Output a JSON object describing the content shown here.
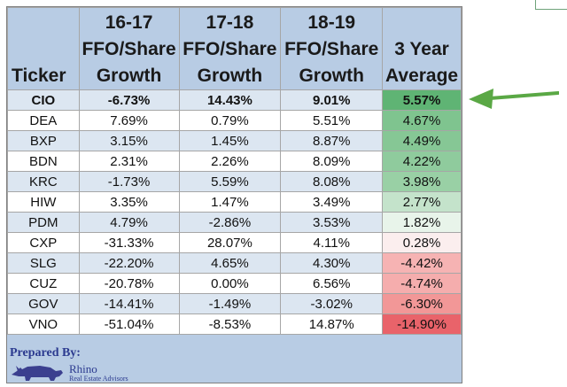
{
  "table": {
    "headers": [
      {
        "lines": [
          "",
          "",
          "Ticker"
        ]
      },
      {
        "lines": [
          "16-17",
          "FFO/Share",
          "Growth"
        ]
      },
      {
        "lines": [
          "17-18",
          "FFO/Share",
          "Growth"
        ]
      },
      {
        "lines": [
          "18-19",
          "FFO/Share",
          "Growth"
        ]
      },
      {
        "lines": [
          "",
          "3 Year",
          "Average"
        ]
      }
    ],
    "rows": [
      {
        "ticker": "CIO",
        "g1617": "-6.73%",
        "g1718": "14.43%",
        "g1819": "9.01%",
        "avg": "5.57%",
        "avg_color": "#5fb474",
        "bold": true
      },
      {
        "ticker": "DEA",
        "g1617": "7.69%",
        "g1718": "0.79%",
        "g1819": "5.51%",
        "avg": "4.67%",
        "avg_color": "#7fc48f"
      },
      {
        "ticker": "BXP",
        "g1617": "3.15%",
        "g1718": "1.45%",
        "g1819": "8.87%",
        "avg": "4.49%",
        "avg_color": "#86c795"
      },
      {
        "ticker": "BDN",
        "g1617": "2.31%",
        "g1718": "2.26%",
        "g1819": "8.09%",
        "avg": "4.22%",
        "avg_color": "#8fcb9d"
      },
      {
        "ticker": "KRC",
        "g1617": "-1.73%",
        "g1718": "5.59%",
        "g1819": "8.08%",
        "avg": "3.98%",
        "avg_color": "#99d0a5"
      },
      {
        "ticker": "HIW",
        "g1617": "3.35%",
        "g1718": "1.47%",
        "g1819": "3.49%",
        "avg": "2.77%",
        "avg_color": "#c4e3cb"
      },
      {
        "ticker": "PDM",
        "g1617": "4.79%",
        "g1718": "-2.86%",
        "g1819": "3.53%",
        "avg": "1.82%",
        "avg_color": "#e8f4ea"
      },
      {
        "ticker": "CXP",
        "g1617": "-31.33%",
        "g1718": "28.07%",
        "g1819": "4.11%",
        "avg": "0.28%",
        "avg_color": "#fbeeee"
      },
      {
        "ticker": "SLG",
        "g1617": "-22.20%",
        "g1718": "4.65%",
        "g1819": "4.30%",
        "avg": "-4.42%",
        "avg_color": "#f6b3b3"
      },
      {
        "ticker": "CUZ",
        "g1617": "-20.78%",
        "g1718": "0.00%",
        "g1819": "6.56%",
        "avg": "-4.74%",
        "avg_color": "#f5adad"
      },
      {
        "ticker": "GOV",
        "g1617": "-14.41%",
        "g1718": "-1.49%",
        "g1819": "-3.02%",
        "avg": "-6.30%",
        "avg_color": "#f29797"
      },
      {
        "ticker": "VNO",
        "g1617": "-51.04%",
        "g1718": "-8.53%",
        "g1819": "14.87%",
        "avg": "-14.90%",
        "avg_color": "#e9636a"
      }
    ]
  },
  "footer": {
    "prepared_by": "Prepared By:",
    "brand_name": "Rhino",
    "brand_sub": "Real Estate Advisors"
  },
  "colors": {
    "header_bg": "#b8cce4",
    "band": "#dce6f1",
    "arrow": "#5aa845"
  },
  "icons": [
    "rhino-logo-icon",
    "arrow-left-icon"
  ]
}
